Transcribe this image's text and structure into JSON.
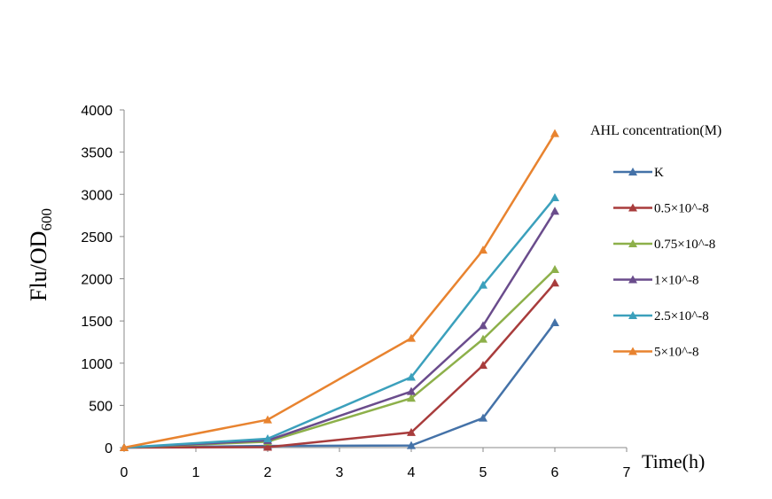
{
  "chart_data": {
    "type": "line",
    "ylabel": "Flu/OD",
    "ylabel_sub": "600",
    "xlabel": "Time(h)",
    "xlim": [
      0,
      7
    ],
    "ylim": [
      0,
      4000
    ],
    "xticks": [
      0,
      1,
      2,
      3,
      4,
      5,
      6,
      7
    ],
    "yticks": [
      0,
      500,
      1000,
      1500,
      2000,
      2500,
      3000,
      3500,
      4000
    ],
    "grid": false,
    "legend_title": "AHL concentration(M)",
    "legend_position": "right",
    "x": [
      0,
      2,
      4,
      5,
      6
    ],
    "series": [
      {
        "name": "K",
        "color": "#4472A8",
        "values": [
          0,
          20,
          25,
          350,
          1480
        ]
      },
      {
        "name": "0.5×10^-8",
        "color": "#A83C3C",
        "values": [
          0,
          5,
          180,
          975,
          1950
        ]
      },
      {
        "name": "0.75×10^-8",
        "color": "#8DB04A",
        "values": [
          0,
          70,
          585,
          1285,
          2110
        ]
      },
      {
        "name": "1×10^-8",
        "color": "#6A4C8C",
        "values": [
          0,
          85,
          665,
          1445,
          2800
        ]
      },
      {
        "name": "2.5×10^-8",
        "color": "#3BA0BC",
        "values": [
          0,
          105,
          835,
          1925,
          2960
        ]
      },
      {
        "name": "5×10^-8",
        "color": "#E8832F",
        "values": [
          0,
          330,
          1295,
          2340,
          3720
        ]
      }
    ]
  }
}
